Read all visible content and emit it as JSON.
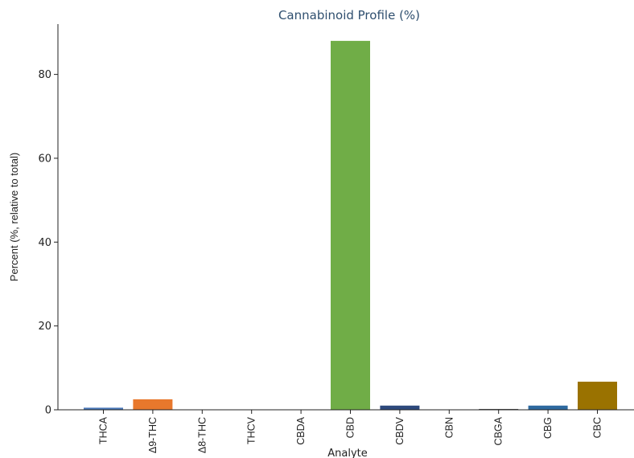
{
  "chart_data": {
    "type": "bar",
    "title": "Cannabinoid Profile (%)",
    "xlabel": "Analyte",
    "ylabel": "Percent (%, relative to total)",
    "categories": [
      "THCA",
      "Δ9-THC",
      "Δ8-THC",
      "THCV",
      "CBDA",
      "CBD",
      "CBDV",
      "CBN",
      "CBGA",
      "CBG",
      "CBC"
    ],
    "values": [
      0.5,
      2.5,
      0,
      0,
      0,
      88.0,
      1.0,
      0,
      0.2,
      1.0,
      6.7
    ],
    "colors": [
      "#4a78b8",
      "#e8782c",
      "#4a78b8",
      "#4a78b8",
      "#4a78b8",
      "#70ad47",
      "#2e4a7d",
      "#4a78b8",
      "#555555",
      "#2e6aa0",
      "#9a7200"
    ],
    "ylim": [
      0,
      92
    ],
    "yticks": [
      0,
      20,
      40,
      60,
      80
    ],
    "grid": false,
    "legend": "none"
  }
}
